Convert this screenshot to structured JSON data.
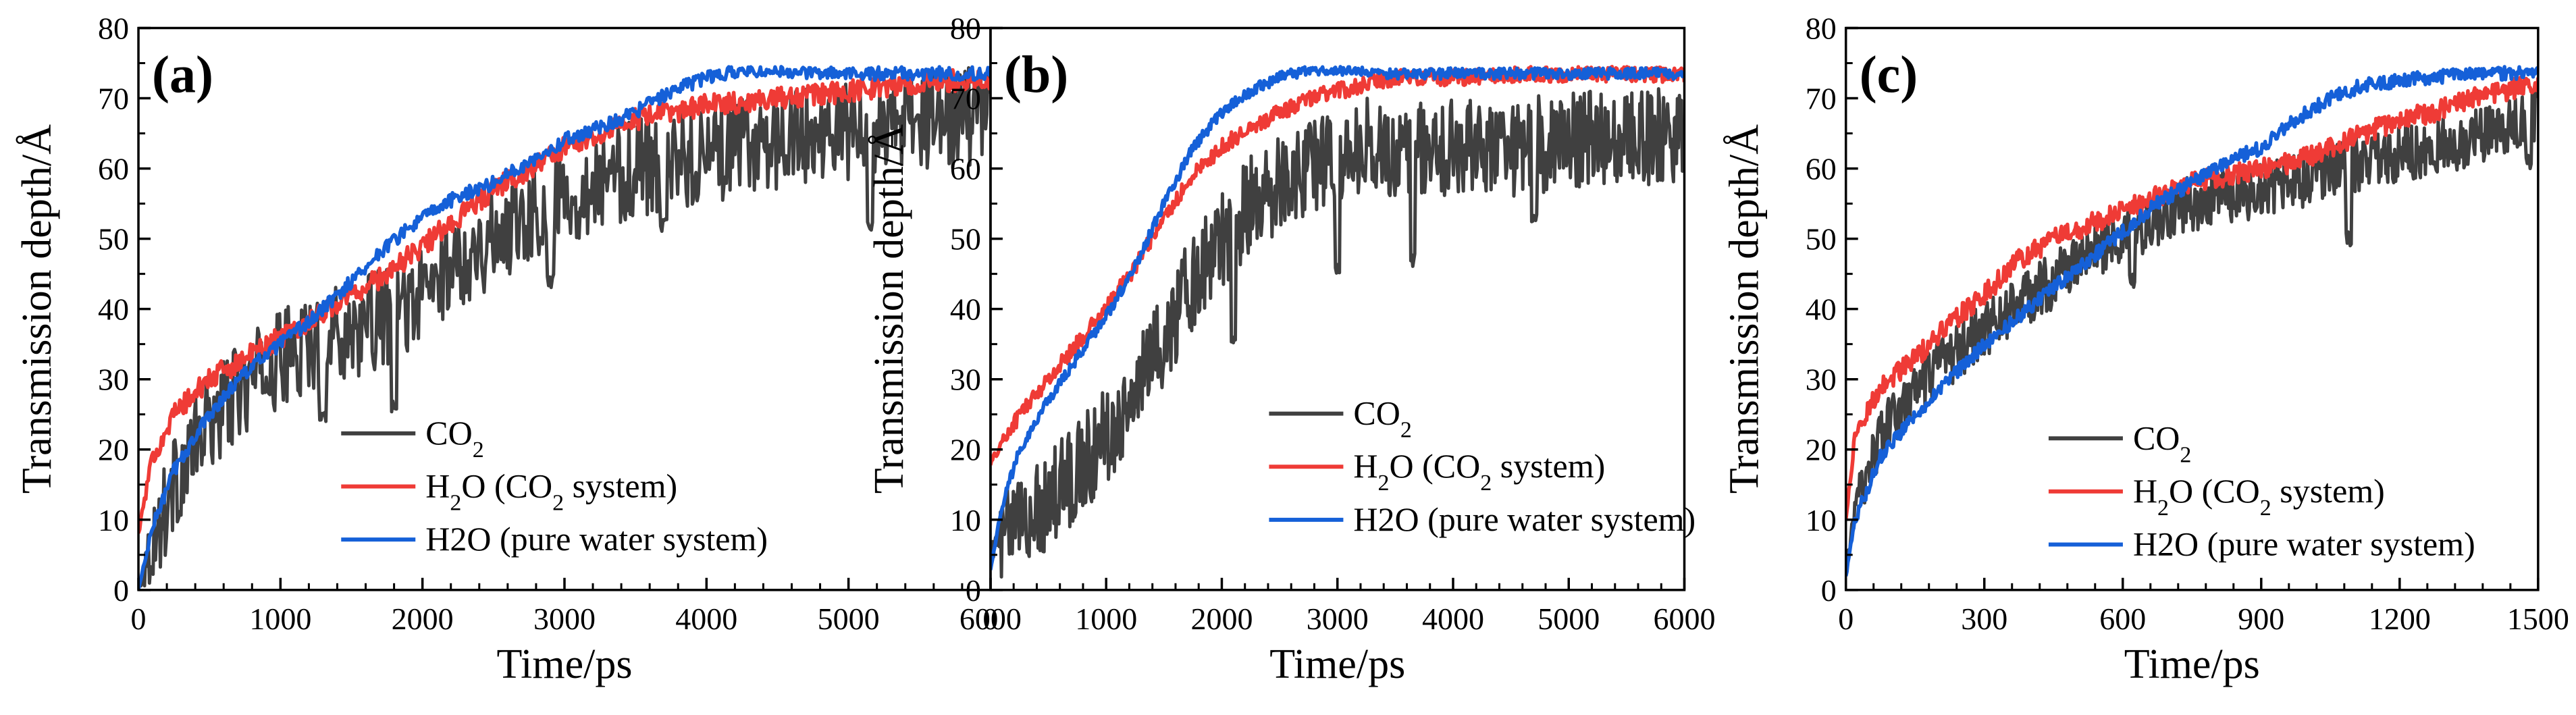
{
  "chart_data": [
    {
      "type": "line",
      "panel_label": "(a)",
      "xlabel": "Time/ps",
      "ylabel": "Transmission depth/Å",
      "xlim": [
        0,
        6000
      ],
      "ylim": [
        0,
        80
      ],
      "xticks": [
        0,
        1000,
        2000,
        3000,
        4000,
        5000,
        6000
      ],
      "yticks": [
        0,
        10,
        20,
        30,
        40,
        50,
        60,
        70,
        80
      ],
      "legend_position": "bottom-right",
      "series": [
        {
          "key": "co2",
          "name": "CO2",
          "legend_main": "CO",
          "legend_sub": "2",
          "legend_after": "",
          "color": "#404040",
          "x": [
            0,
            250,
            500,
            750,
            1000,
            1250,
            1500,
            1750,
            2000,
            2250,
            2500,
            2750,
            3000,
            3250,
            3500,
            3750,
            4000,
            4250,
            4500,
            4750,
            5000,
            5250,
            5500,
            5750,
            6000
          ],
          "y": [
            1,
            15,
            24,
            29,
            33,
            35,
            37,
            39,
            42,
            47,
            50,
            54,
            56,
            58,
            60,
            61,
            62,
            63,
            64,
            65,
            65,
            66,
            67,
            67,
            68
          ],
          "noise": 7,
          "spikes": [
            [
              1800,
              26
            ],
            [
              3700,
              52
            ],
            [
              5150,
              52
            ],
            [
              1300,
              25
            ],
            [
              2900,
              44
            ]
          ]
        },
        {
          "key": "h2o_co2",
          "name": "H2O (CO2 system)",
          "legend_main": "H",
          "legend_sub": "2",
          "legend_after": "O (CO",
          "legend_sub2": "2",
          "legend_tail": "  system)",
          "color": "#ef3b36",
          "x": [
            0,
            100,
            250,
            500,
            750,
            1000,
            1250,
            1500,
            1750,
            2000,
            2250,
            2500,
            2750,
            3000,
            3250,
            3500,
            3750,
            4000,
            4500,
            5000,
            5500,
            6000
          ],
          "y": [
            8,
            19,
            25,
            30,
            33,
            36,
            39,
            42,
            45,
            49,
            53,
            57,
            60,
            63,
            65,
            67,
            68,
            69,
            70,
            71,
            72,
            73
          ],
          "noise": 1.6,
          "spikes": []
        },
        {
          "key": "h2o_pure",
          "name": "H2O (pure water system)",
          "legend_main": "H2O (pure water system)",
          "color": "#1560d8",
          "x": [
            0,
            100,
            250,
            500,
            750,
            1000,
            1250,
            1500,
            1750,
            2000,
            2250,
            2500,
            2750,
            3000,
            3250,
            3500,
            3750,
            4000,
            4250,
            4500,
            5000,
            5500,
            6000
          ],
          "y": [
            0,
            9,
            17,
            25,
            31,
            35,
            39,
            44,
            49,
            53,
            56,
            58,
            61,
            64,
            66,
            68,
            71,
            73,
            74,
            74,
            73.5,
            73.5,
            73.5
          ],
          "noise": 1.0,
          "spikes": []
        }
      ]
    },
    {
      "type": "line",
      "panel_label": "(b)",
      "xlabel": "Time/ps",
      "ylabel": "Transmission depth/Å",
      "xlim": [
        0,
        6000
      ],
      "ylim": [
        0,
        80
      ],
      "xticks": [
        0,
        1000,
        2000,
        3000,
        4000,
        5000,
        6000
      ],
      "yticks": [
        0,
        10,
        20,
        30,
        40,
        50,
        60,
        70,
        80
      ],
      "legend_position": "center-right",
      "series": [
        {
          "key": "co2",
          "name": "CO2",
          "legend_main": "CO",
          "legend_sub": "2",
          "legend_after": "",
          "color": "#404040",
          "x": [
            0,
            150,
            300,
            500,
            750,
            1000,
            1250,
            1500,
            1750,
            2000,
            2250,
            2500,
            2750,
            3000,
            3250,
            3500,
            3750,
            4000,
            4500,
            5000,
            5500,
            6000
          ],
          "y": [
            5,
            8,
            10,
            13,
            17,
            22,
            28,
            36,
            44,
            50,
            55,
            58,
            60,
            62,
            63,
            63,
            63,
            63,
            63,
            64,
            64,
            65
          ],
          "noise": 7,
          "spikes": [
            [
              3650,
              47
            ],
            [
              4700,
              53
            ],
            [
              2100,
              36
            ],
            [
              3000,
              46
            ]
          ]
        },
        {
          "key": "h2o_co2",
          "name": "H2O (CO2 system)",
          "legend_main": "H",
          "legend_sub": "2",
          "legend_after": "O (CO",
          "legend_sub2": "2",
          "legend_tail": "  system)",
          "color": "#ef3b36",
          "x": [
            0,
            100,
            250,
            500,
            750,
            1000,
            1250,
            1500,
            1750,
            2000,
            2250,
            2500,
            2750,
            3000,
            3250,
            3500,
            4000,
            5000,
            6000
          ],
          "y": [
            18,
            21,
            25,
            30,
            35,
            40,
            46,
            53,
            59,
            63,
            66,
            68,
            70,
            71,
            72,
            73,
            73,
            73.5,
            73.5
          ],
          "noise": 1.2,
          "spikes": []
        },
        {
          "key": "h2o_pure",
          "name": "H2O (pure water system)",
          "legend_main": "H2O (pure water system)",
          "color": "#1560d8",
          "x": [
            0,
            100,
            250,
            500,
            750,
            1000,
            1250,
            1500,
            1750,
            2000,
            2250,
            2500,
            2750,
            3000,
            3500,
            4000,
            5000,
            6000
          ],
          "y": [
            3,
            12,
            20,
            27,
            33,
            39,
            46,
            55,
            63,
            68,
            71,
            73,
            74,
            74,
            73.5,
            73.5,
            73.5,
            73.5
          ],
          "noise": 0.8,
          "spikes": []
        }
      ]
    },
    {
      "type": "line",
      "panel_label": "(c)",
      "xlabel": "Time/ps",
      "ylabel": "Transmission depth/Å",
      "xlim": [
        0,
        1500
      ],
      "ylim": [
        0,
        80
      ],
      "xticks": [
        0,
        300,
        600,
        900,
        1200,
        1500
      ],
      "yticks": [
        0,
        10,
        20,
        30,
        40,
        50,
        60,
        70,
        80
      ],
      "legend_position": "bottom-right",
      "series": [
        {
          "key": "co2",
          "name": "CO2",
          "legend_main": "CO",
          "legend_sub": "2",
          "legend_after": "",
          "color": "#404040",
          "x": [
            0,
            30,
            75,
            150,
            225,
            300,
            375,
            450,
            525,
            600,
            675,
            750,
            825,
            900,
            975,
            1050,
            1125,
            1200,
            1275,
            1350,
            1425,
            1500
          ],
          "y": [
            4,
            14,
            22,
            28,
            33,
            37,
            41,
            44,
            48,
            50,
            53,
            55,
            56,
            57,
            58,
            60,
            61,
            62,
            63,
            64,
            66,
            68
          ],
          "noise": 4,
          "spikes": [
            [
              1090,
              50
            ],
            [
              1480,
              61
            ],
            [
              620,
              44
            ]
          ]
        },
        {
          "key": "h2o_co2",
          "name": "H2O (CO2 system)",
          "legend_main": "H",
          "legend_sub": "2",
          "legend_after": "O (CO",
          "legend_sub2": "2",
          "legend_tail": "  system)",
          "color": "#ef3b36",
          "x": [
            0,
            20,
            75,
            150,
            225,
            300,
            375,
            450,
            525,
            600,
            675,
            750,
            825,
            900,
            975,
            1050,
            1125,
            1200,
            1275,
            1350,
            1425,
            1500
          ],
          "y": [
            10,
            22,
            29,
            33,
            38,
            42,
            47,
            50,
            52,
            54,
            56,
            58,
            59,
            60,
            61,
            63,
            65,
            67,
            68,
            70,
            71,
            72
          ],
          "noise": 1.5,
          "spikes": []
        },
        {
          "key": "h2o_pure",
          "name": "H2O (pure water system)",
          "legend_main": "H2O (pure water system)",
          "color": "#1560d8",
          "x": [
            0,
            20,
            75,
            150,
            225,
            300,
            375,
            450,
            525,
            600,
            675,
            750,
            825,
            900,
            975,
            1050,
            1125,
            1200,
            1275,
            1350,
            1425,
            1500
          ],
          "y": [
            2,
            10,
            19,
            25,
            30,
            35,
            39,
            43,
            47,
            51,
            55,
            58,
            61,
            63,
            67,
            70,
            72,
            72.5,
            73,
            73.5,
            73.5,
            74
          ],
          "noise": 1.0,
          "spikes": []
        }
      ]
    }
  ]
}
